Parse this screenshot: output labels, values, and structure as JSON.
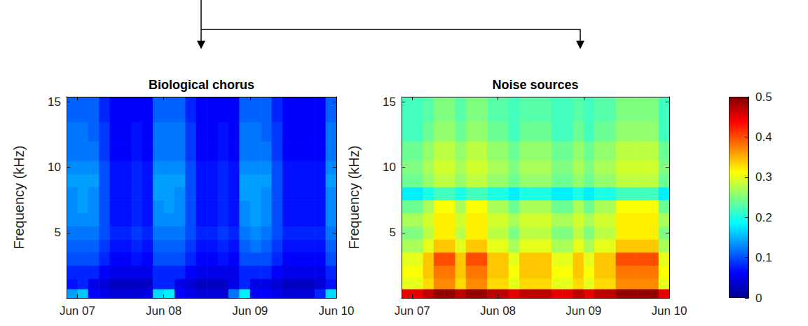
{
  "chart_data": [
    {
      "type": "heatmap",
      "title": "Biological chorus",
      "ylabel": "Frequency (kHz)",
      "xlim": [
        -3,
        72
      ],
      "xticks": [
        {
          "value": 0,
          "label": "Jun 07"
        },
        {
          "value": 24,
          "label": "Jun 08"
        },
        {
          "value": 48,
          "label": "Jun 09"
        },
        {
          "value": 72,
          "label": "Jun 10"
        }
      ],
      "ylim": [
        0,
        15.4
      ],
      "yticks": [
        5,
        10,
        15
      ],
      "x_bins": [
        -3,
        0,
        3,
        6,
        9,
        12,
        15,
        18,
        21,
        24,
        27,
        30,
        33,
        36,
        39,
        42,
        45,
        48,
        51,
        54,
        57,
        60,
        63,
        66,
        69,
        72
      ],
      "y_bins": [
        0,
        0.7,
        1.5,
        2.5,
        3.5,
        4.5,
        5.5,
        6.5,
        7.5,
        8.5,
        9.5,
        10.5,
        12,
        13.5,
        15.4
      ],
      "color_range": [
        0,
        0.5
      ],
      "cells": [
        [
          0.14,
          0.16,
          0.06,
          0.05,
          0.04,
          0.04,
          0.04,
          0.05,
          0.17,
          0.18,
          0.06,
          0.05,
          0.04,
          0.04,
          0.04,
          0.12,
          0.18,
          0.06,
          0.06,
          0.05,
          0.04,
          0.04,
          0.04,
          0.08,
          0.17
        ],
        [
          0.07,
          0.08,
          0.05,
          0.04,
          0.03,
          0.03,
          0.03,
          0.03,
          0.08,
          0.08,
          0.05,
          0.04,
          0.03,
          0.03,
          0.03,
          0.05,
          0.08,
          0.05,
          0.05,
          0.04,
          0.03,
          0.03,
          0.03,
          0.04,
          0.07
        ],
        [
          0.08,
          0.08,
          0.08,
          0.06,
          0.05,
          0.05,
          0.05,
          0.05,
          0.08,
          0.08,
          0.08,
          0.06,
          0.05,
          0.05,
          0.05,
          0.05,
          0.08,
          0.08,
          0.08,
          0.06,
          0.05,
          0.05,
          0.05,
          0.05,
          0.08
        ],
        [
          0.1,
          0.1,
          0.1,
          0.08,
          0.06,
          0.06,
          0.07,
          0.06,
          0.1,
          0.1,
          0.1,
          0.08,
          0.06,
          0.06,
          0.07,
          0.06,
          0.1,
          0.1,
          0.1,
          0.08,
          0.06,
          0.06,
          0.06,
          0.06,
          0.1
        ],
        [
          0.11,
          0.11,
          0.11,
          0.09,
          0.07,
          0.07,
          0.08,
          0.07,
          0.11,
          0.11,
          0.11,
          0.09,
          0.07,
          0.07,
          0.08,
          0.07,
          0.11,
          0.12,
          0.11,
          0.09,
          0.07,
          0.07,
          0.07,
          0.07,
          0.11
        ],
        [
          0.12,
          0.12,
          0.12,
          0.1,
          0.08,
          0.08,
          0.09,
          0.08,
          0.12,
          0.12,
          0.12,
          0.1,
          0.08,
          0.08,
          0.09,
          0.08,
          0.12,
          0.13,
          0.12,
          0.1,
          0.08,
          0.08,
          0.08,
          0.08,
          0.12
        ],
        [
          0.13,
          0.13,
          0.13,
          0.1,
          0.07,
          0.07,
          0.08,
          0.07,
          0.13,
          0.13,
          0.13,
          0.1,
          0.07,
          0.07,
          0.08,
          0.07,
          0.13,
          0.14,
          0.13,
          0.1,
          0.07,
          0.07,
          0.07,
          0.07,
          0.13
        ],
        [
          0.13,
          0.14,
          0.13,
          0.1,
          0.07,
          0.07,
          0.08,
          0.07,
          0.13,
          0.14,
          0.13,
          0.1,
          0.07,
          0.07,
          0.08,
          0.07,
          0.13,
          0.14,
          0.13,
          0.1,
          0.07,
          0.07,
          0.07,
          0.07,
          0.13
        ],
        [
          0.13,
          0.14,
          0.13,
          0.1,
          0.07,
          0.07,
          0.08,
          0.07,
          0.14,
          0.14,
          0.13,
          0.1,
          0.07,
          0.07,
          0.08,
          0.07,
          0.14,
          0.14,
          0.13,
          0.1,
          0.07,
          0.07,
          0.07,
          0.07,
          0.13
        ],
        [
          0.14,
          0.14,
          0.14,
          0.1,
          0.07,
          0.07,
          0.08,
          0.07,
          0.14,
          0.14,
          0.14,
          0.1,
          0.07,
          0.07,
          0.08,
          0.07,
          0.14,
          0.14,
          0.14,
          0.1,
          0.07,
          0.07,
          0.07,
          0.07,
          0.14
        ],
        [
          0.13,
          0.13,
          0.13,
          0.1,
          0.07,
          0.07,
          0.08,
          0.07,
          0.13,
          0.13,
          0.13,
          0.1,
          0.07,
          0.07,
          0.08,
          0.07,
          0.13,
          0.13,
          0.13,
          0.1,
          0.07,
          0.07,
          0.07,
          0.07,
          0.13
        ],
        [
          0.12,
          0.12,
          0.12,
          0.09,
          0.06,
          0.06,
          0.07,
          0.06,
          0.12,
          0.12,
          0.12,
          0.09,
          0.06,
          0.06,
          0.07,
          0.06,
          0.12,
          0.12,
          0.12,
          0.09,
          0.06,
          0.06,
          0.06,
          0.06,
          0.12
        ],
        [
          0.12,
          0.12,
          0.11,
          0.09,
          0.06,
          0.06,
          0.07,
          0.06,
          0.12,
          0.12,
          0.12,
          0.09,
          0.06,
          0.06,
          0.07,
          0.06,
          0.12,
          0.12,
          0.11,
          0.09,
          0.06,
          0.06,
          0.06,
          0.06,
          0.12
        ],
        [
          0.11,
          0.11,
          0.11,
          0.08,
          0.06,
          0.06,
          0.06,
          0.06,
          0.11,
          0.11,
          0.11,
          0.08,
          0.06,
          0.06,
          0.06,
          0.06,
          0.11,
          0.11,
          0.11,
          0.08,
          0.06,
          0.06,
          0.06,
          0.06,
          0.11
        ]
      ]
    },
    {
      "type": "heatmap",
      "title": "Noise sources",
      "ylabel": "Frequency (kHz)",
      "xlim": [
        -3,
        72
      ],
      "xticks": [
        {
          "value": 0,
          "label": "Jun 07"
        },
        {
          "value": 24,
          "label": "Jun 08"
        },
        {
          "value": 48,
          "label": "Jun 09"
        },
        {
          "value": 72,
          "label": "Jun 10"
        }
      ],
      "ylim": [
        0,
        15.4
      ],
      "yticks": [
        5,
        10,
        15
      ],
      "x_bins": [
        -3,
        0,
        3,
        6,
        9,
        12,
        15,
        18,
        21,
        24,
        27,
        30,
        33,
        36,
        39,
        42,
        45,
        48,
        51,
        54,
        57,
        60,
        63,
        66,
        69,
        72
      ],
      "y_bins": [
        0,
        0.7,
        1.5,
        2.5,
        3.5,
        4.5,
        5.5,
        6.5,
        7.5,
        8.5,
        9.5,
        10.5,
        12,
        13.5,
        15.4
      ],
      "color_range": [
        0,
        0.5
      ],
      "color_ticks": [
        0,
        0.1,
        0.2,
        0.3,
        0.4,
        0.5
      ],
      "cells": [
        [
          0.45,
          0.45,
          0.47,
          0.49,
          0.49,
          0.47,
          0.49,
          0.49,
          0.47,
          0.47,
          0.45,
          0.47,
          0.47,
          0.47,
          0.45,
          0.45,
          0.47,
          0.45,
          0.47,
          0.47,
          0.49,
          0.49,
          0.49,
          0.49,
          0.45
        ],
        [
          0.3,
          0.3,
          0.33,
          0.37,
          0.37,
          0.33,
          0.37,
          0.37,
          0.33,
          0.33,
          0.3,
          0.33,
          0.33,
          0.33,
          0.3,
          0.3,
          0.33,
          0.3,
          0.33,
          0.33,
          0.37,
          0.37,
          0.37,
          0.37,
          0.3
        ],
        [
          0.31,
          0.31,
          0.34,
          0.38,
          0.38,
          0.34,
          0.38,
          0.38,
          0.34,
          0.34,
          0.31,
          0.34,
          0.34,
          0.34,
          0.31,
          0.31,
          0.34,
          0.31,
          0.34,
          0.34,
          0.38,
          0.38,
          0.38,
          0.38,
          0.31
        ],
        [
          0.3,
          0.3,
          0.34,
          0.4,
          0.4,
          0.34,
          0.4,
          0.4,
          0.34,
          0.34,
          0.3,
          0.34,
          0.34,
          0.34,
          0.3,
          0.3,
          0.34,
          0.3,
          0.34,
          0.34,
          0.4,
          0.4,
          0.4,
          0.4,
          0.3
        ],
        [
          0.27,
          0.27,
          0.3,
          0.34,
          0.34,
          0.3,
          0.34,
          0.34,
          0.3,
          0.3,
          0.27,
          0.3,
          0.3,
          0.3,
          0.27,
          0.27,
          0.3,
          0.27,
          0.3,
          0.3,
          0.34,
          0.34,
          0.34,
          0.34,
          0.27
        ],
        [
          0.25,
          0.25,
          0.28,
          0.32,
          0.32,
          0.28,
          0.32,
          0.32,
          0.28,
          0.28,
          0.25,
          0.28,
          0.28,
          0.28,
          0.25,
          0.25,
          0.28,
          0.25,
          0.28,
          0.28,
          0.32,
          0.32,
          0.32,
          0.32,
          0.25
        ],
        [
          0.27,
          0.27,
          0.29,
          0.32,
          0.32,
          0.29,
          0.32,
          0.32,
          0.29,
          0.29,
          0.27,
          0.29,
          0.29,
          0.29,
          0.27,
          0.27,
          0.29,
          0.27,
          0.29,
          0.29,
          0.32,
          0.32,
          0.32,
          0.32,
          0.27
        ],
        [
          0.24,
          0.24,
          0.27,
          0.31,
          0.31,
          0.27,
          0.31,
          0.31,
          0.27,
          0.27,
          0.24,
          0.27,
          0.27,
          0.27,
          0.24,
          0.24,
          0.27,
          0.24,
          0.27,
          0.27,
          0.31,
          0.31,
          0.31,
          0.31,
          0.24
        ],
        [
          0.18,
          0.18,
          0.2,
          0.22,
          0.22,
          0.2,
          0.22,
          0.22,
          0.2,
          0.2,
          0.18,
          0.2,
          0.2,
          0.2,
          0.18,
          0.18,
          0.2,
          0.18,
          0.2,
          0.2,
          0.22,
          0.22,
          0.22,
          0.22,
          0.18
        ],
        [
          0.24,
          0.24,
          0.26,
          0.28,
          0.28,
          0.26,
          0.28,
          0.28,
          0.26,
          0.26,
          0.24,
          0.26,
          0.26,
          0.26,
          0.24,
          0.24,
          0.26,
          0.24,
          0.26,
          0.26,
          0.28,
          0.28,
          0.28,
          0.28,
          0.24
        ],
        [
          0.25,
          0.25,
          0.27,
          0.29,
          0.29,
          0.27,
          0.29,
          0.29,
          0.27,
          0.27,
          0.25,
          0.27,
          0.27,
          0.27,
          0.25,
          0.25,
          0.27,
          0.25,
          0.27,
          0.27,
          0.29,
          0.29,
          0.29,
          0.29,
          0.25
        ],
        [
          0.24,
          0.24,
          0.26,
          0.28,
          0.28,
          0.26,
          0.28,
          0.28,
          0.26,
          0.26,
          0.24,
          0.26,
          0.26,
          0.26,
          0.24,
          0.24,
          0.26,
          0.24,
          0.26,
          0.26,
          0.28,
          0.28,
          0.28,
          0.28,
          0.24
        ],
        [
          0.22,
          0.22,
          0.24,
          0.26,
          0.26,
          0.24,
          0.26,
          0.26,
          0.24,
          0.24,
          0.22,
          0.24,
          0.24,
          0.24,
          0.22,
          0.22,
          0.24,
          0.22,
          0.24,
          0.24,
          0.26,
          0.26,
          0.26,
          0.26,
          0.22
        ],
        [
          0.22,
          0.22,
          0.23,
          0.25,
          0.25,
          0.23,
          0.25,
          0.25,
          0.23,
          0.23,
          0.22,
          0.23,
          0.23,
          0.23,
          0.22,
          0.22,
          0.23,
          0.22,
          0.23,
          0.23,
          0.25,
          0.25,
          0.25,
          0.25,
          0.22
        ]
      ]
    }
  ]
}
